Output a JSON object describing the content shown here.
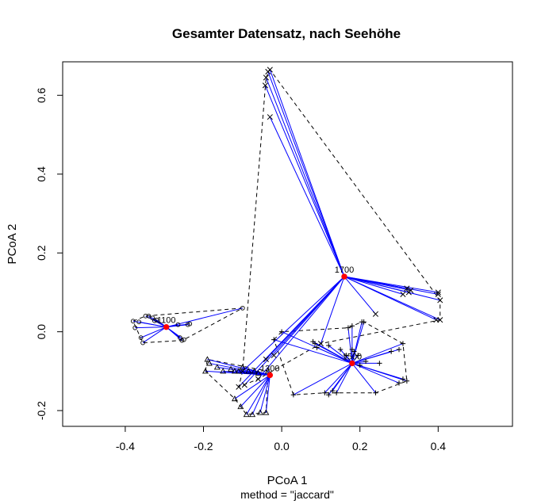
{
  "chart_data": {
    "type": "scatter",
    "title": "Gesamter Datensatz, nach Seehöhe",
    "xlabel": "PCoA 1",
    "sublabel": "method = \"jaccard\"",
    "ylabel": "PCoA 2",
    "xlim": [
      -0.56,
      0.59
    ],
    "ylim": [
      -0.24,
      0.685
    ],
    "xticks": [
      -0.4,
      -0.2,
      0.0,
      0.2,
      0.4
    ],
    "xtick_labels": [
      "-0.4",
      "-0.2",
      "0.0",
      "0.2",
      "0.4"
    ],
    "yticks": [
      -0.2,
      0.0,
      0.2,
      0.4,
      0.6
    ],
    "ytick_labels": [
      "-0.2",
      "0.0",
      "0.2",
      "0.4",
      "0.6"
    ],
    "grid": false,
    "colors": {
      "spider": "#0000ff",
      "centroid": "#ff0000",
      "hull": "#000000",
      "points": "#000000"
    },
    "groups": [
      {
        "label": "1100",
        "marker": "circle",
        "centroid": [
          -0.295,
          0.012
        ],
        "points": [
          [
            -0.38,
            0.027
          ],
          [
            -0.375,
            0.01
          ],
          [
            -0.365,
            0.025
          ],
          [
            -0.36,
            -0.015
          ],
          [
            -0.355,
            -0.028
          ],
          [
            -0.348,
            0.04
          ],
          [
            -0.34,
            0.04
          ],
          [
            -0.33,
            0.035
          ],
          [
            -0.325,
            0.028
          ],
          [
            -0.32,
            0.03
          ],
          [
            -0.265,
            0.018
          ],
          [
            -0.26,
            -0.015
          ],
          [
            -0.255,
            -0.022
          ],
          [
            -0.25,
            -0.02
          ],
          [
            -0.24,
            0.018
          ],
          [
            -0.235,
            0.02
          ],
          [
            -0.1,
            0.06
          ]
        ],
        "hull": [
          [
            -0.38,
            0.027
          ],
          [
            -0.348,
            0.04
          ],
          [
            -0.1,
            0.06
          ],
          [
            -0.25,
            -0.02
          ],
          [
            -0.255,
            -0.022
          ],
          [
            -0.355,
            -0.028
          ]
        ]
      },
      {
        "label": "1300",
        "marker": "triangle",
        "centroid": [
          -0.03,
          -0.11
        ],
        "points": [
          [
            -0.195,
            -0.1
          ],
          [
            -0.19,
            -0.07
          ],
          [
            -0.185,
            -0.08
          ],
          [
            -0.165,
            -0.09
          ],
          [
            -0.15,
            -0.1
          ],
          [
            -0.13,
            -0.095
          ],
          [
            -0.12,
            -0.1
          ],
          [
            -0.11,
            -0.1
          ],
          [
            -0.1,
            -0.09
          ],
          [
            -0.085,
            -0.1
          ],
          [
            -0.07,
            -0.1
          ],
          [
            -0.06,
            -0.105
          ],
          [
            -0.035,
            -0.1
          ],
          [
            -0.12,
            -0.17
          ],
          [
            -0.105,
            -0.19
          ],
          [
            -0.09,
            -0.21
          ],
          [
            -0.075,
            -0.21
          ],
          [
            -0.055,
            -0.205
          ],
          [
            -0.04,
            -0.205
          ]
        ],
        "hull": [
          [
            -0.195,
            -0.1
          ],
          [
            -0.19,
            -0.07
          ],
          [
            -0.035,
            -0.1
          ],
          [
            -0.04,
            -0.205
          ],
          [
            -0.09,
            -0.21
          ],
          [
            -0.12,
            -0.17
          ]
        ]
      },
      {
        "label": "1500",
        "marker": "plus",
        "centroid": [
          0.18,
          -0.08
        ],
        "points": [
          [
            -0.02,
            -0.02
          ],
          [
            0.0,
            0.0
          ],
          [
            0.08,
            -0.025
          ],
          [
            0.085,
            -0.03
          ],
          [
            0.09,
            -0.04
          ],
          [
            0.12,
            -0.035
          ],
          [
            0.15,
            -0.045
          ],
          [
            0.165,
            -0.06
          ],
          [
            0.18,
            -0.045
          ],
          [
            0.185,
            -0.05
          ],
          [
            0.17,
            0.01
          ],
          [
            0.18,
            0.015
          ],
          [
            0.195,
            -0.06
          ],
          [
            0.2,
            -0.085
          ],
          [
            0.205,
            0.025
          ],
          [
            0.21,
            0.025
          ],
          [
            0.215,
            -0.075
          ],
          [
            0.28,
            -0.05
          ],
          [
            0.3,
            -0.045
          ],
          [
            0.31,
            -0.03
          ],
          [
            0.3,
            -0.13
          ],
          [
            0.31,
            -0.12
          ],
          [
            0.32,
            -0.125
          ],
          [
            0.24,
            -0.155
          ],
          [
            0.13,
            -0.15
          ],
          [
            0.11,
            -0.155
          ],
          [
            0.12,
            -0.16
          ],
          [
            0.14,
            -0.155
          ],
          [
            0.03,
            -0.16
          ],
          [
            0.25,
            -0.08
          ]
        ],
        "hull": [
          [
            -0.02,
            -0.02
          ],
          [
            0.0,
            0.0
          ],
          [
            0.17,
            0.01
          ],
          [
            0.205,
            0.025
          ],
          [
            0.21,
            0.025
          ],
          [
            0.31,
            -0.03
          ],
          [
            0.32,
            -0.125
          ],
          [
            0.24,
            -0.155
          ],
          [
            0.11,
            -0.155
          ],
          [
            0.03,
            -0.16
          ]
        ]
      },
      {
        "label": "1700",
        "marker": "x",
        "centroid": [
          0.16,
          0.14
        ],
        "points": [
          [
            -0.035,
            0.66
          ],
          [
            -0.03,
            0.665
          ],
          [
            -0.04,
            0.645
          ],
          [
            -0.042,
            0.625
          ],
          [
            -0.03,
            0.545
          ],
          [
            0.4,
            0.1
          ],
          [
            0.4,
            0.095
          ],
          [
            0.405,
            0.08
          ],
          [
            0.395,
            0.03
          ],
          [
            0.405,
            0.03
          ],
          [
            0.32,
            0.11
          ],
          [
            0.33,
            0.105
          ],
          [
            0.325,
            0.1
          ],
          [
            0.31,
            0.095
          ],
          [
            0.24,
            0.045
          ],
          [
            0.1,
            -0.03
          ],
          [
            -0.02,
            -0.06
          ],
          [
            -0.04,
            -0.07
          ],
          [
            -0.06,
            -0.12
          ],
          [
            -0.1,
            -0.1
          ],
          [
            -0.11,
            -0.14
          ],
          [
            -0.095,
            -0.135
          ]
        ],
        "hull": [
          [
            -0.04,
            0.645
          ],
          [
            -0.03,
            0.665
          ],
          [
            0.405,
            0.08
          ],
          [
            0.405,
            0.03
          ],
          [
            0.1,
            -0.03
          ],
          [
            -0.06,
            -0.12
          ],
          [
            -0.11,
            -0.14
          ],
          [
            -0.1,
            -0.1
          ]
        ]
      }
    ]
  }
}
